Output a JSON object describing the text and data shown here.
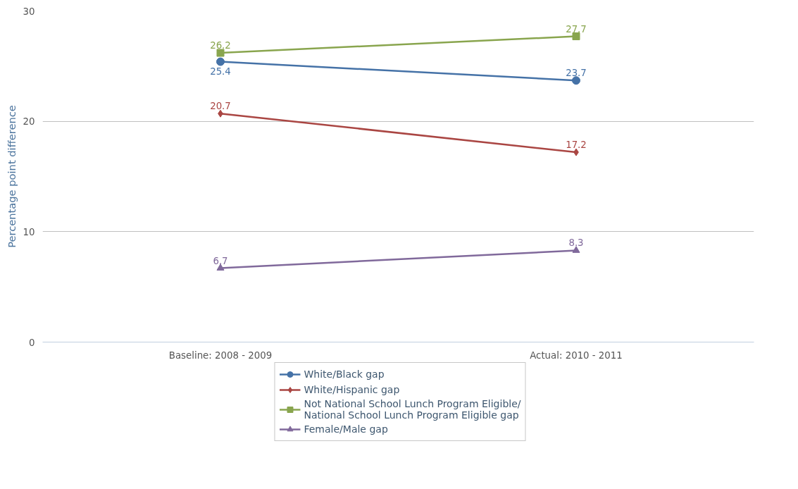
{
  "chart_data": {
    "type": "line",
    "ylabel": "Percentage point difference",
    "categories": [
      "Baseline: 2008 - 2009",
      "Actual: 2010 - 2011"
    ],
    "series": [
      {
        "name": "White/Black gap",
        "color": "#4572a7",
        "marker": "circle",
        "values": [
          25.4,
          23.7
        ]
      },
      {
        "name": "White/Hispanic gap",
        "color": "#aa4643",
        "marker": "diamond",
        "values": [
          20.7,
          17.2
        ]
      },
      {
        "name": "Not National School Lunch Program Eligible/National School Lunch Program Eligible gap",
        "color": "#89a54e",
        "marker": "square",
        "values": [
          26.2,
          27.7
        ]
      },
      {
        "name": "Female/Male gap",
        "color": "#80699b",
        "marker": "triangle",
        "values": [
          6.7,
          8.3
        ]
      }
    ],
    "ylim": [
      0,
      30
    ],
    "yticks": [
      0,
      10,
      20,
      30
    ],
    "grid": "y",
    "legend": "bottom",
    "data_labels": true,
    "line_style": "solid"
  }
}
